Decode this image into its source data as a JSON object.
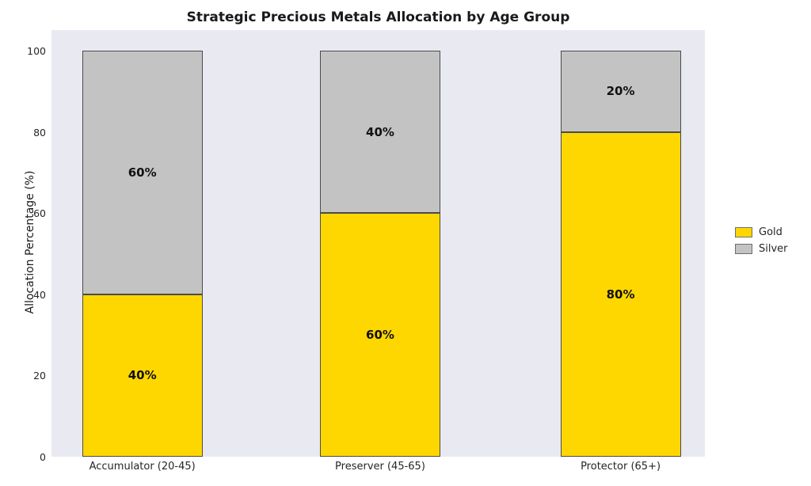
{
  "chart_data": {
    "type": "bar",
    "stacked": true,
    "title": "Strategic Precious Metals Allocation by Age Group",
    "xlabel": "",
    "ylabel": "Allocation Percentage (%)",
    "ylim": [
      0,
      100
    ],
    "yticks": [
      0,
      20,
      40,
      60,
      80,
      100
    ],
    "grid": false,
    "plot_background": "#e9e9f2",
    "bar_edge_color": "#4a4a4a",
    "categories": [
      "Accumulator (20-45)",
      "Preserver (45-65)",
      "Protector (65+)"
    ],
    "series": [
      {
        "name": "Gold",
        "color": "#FFD700",
        "values": [
          40,
          60,
          80
        ],
        "labels": [
          "40%",
          "60%",
          "80%"
        ]
      },
      {
        "name": "Silver",
        "color": "#C3C3C3",
        "values": [
          60,
          40,
          20
        ],
        "labels": [
          "60%",
          "40%",
          "20%"
        ]
      }
    ],
    "legend": {
      "position": "center-right",
      "entries": [
        {
          "label": "Gold",
          "color": "#FFD700"
        },
        {
          "label": "Silver",
          "color": "#C3C3C3"
        }
      ]
    }
  }
}
